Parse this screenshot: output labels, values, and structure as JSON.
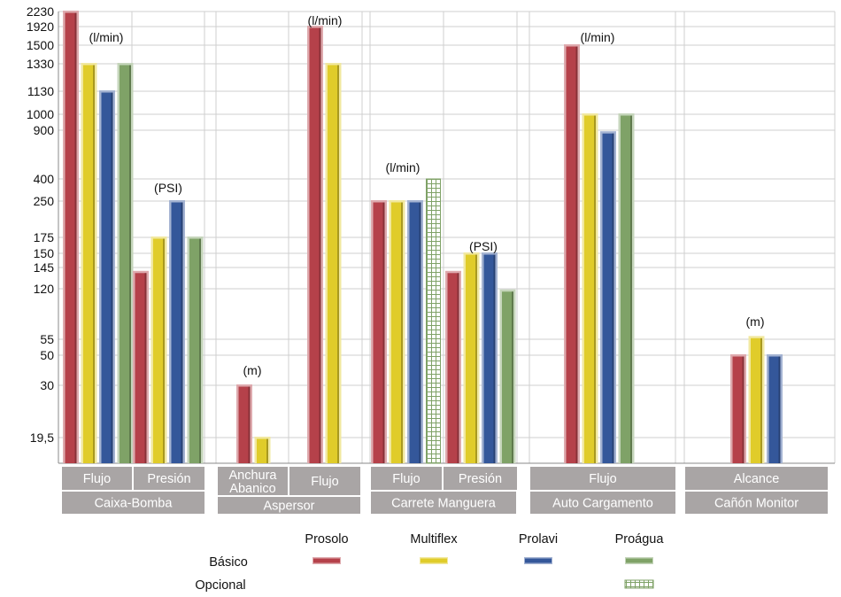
{
  "chart_data": {
    "type": "bar",
    "y_ticks": [
      "2230",
      "1920",
      "1500",
      "1330",
      "1130",
      "1000",
      "900",
      "400",
      "250",
      "175",
      "150",
      "145",
      "120",
      "55",
      "50",
      "30",
      "19,5"
    ],
    "groups": [
      {
        "sub": "Flujo",
        "main": "Caixa-Bomba",
        "unit": "(l/min)",
        "bars": [
          {
            "series": "Prosolo",
            "type": "Básico",
            "value": 2230
          },
          {
            "series": "Multiflex",
            "type": "Básico",
            "value": 1330
          },
          {
            "series": "Prolavi",
            "type": "Básico",
            "value": 1130
          },
          {
            "series": "Proágua",
            "type": "Básico",
            "value": 1330
          }
        ]
      },
      {
        "sub": "Presión",
        "main": "Caixa-Bomba",
        "unit": "(PSI)",
        "bars": [
          {
            "series": "Prosolo",
            "type": "Básico",
            "value": 140
          },
          {
            "series": "Multiflex",
            "type": "Básico",
            "value": 175
          },
          {
            "series": "Prolavi",
            "type": "Básico",
            "value": 250
          },
          {
            "series": "Proágua",
            "type": "Básico",
            "value": 175
          }
        ]
      },
      {
        "sub": "Anchura Abanico",
        "main": "Aspersor",
        "unit": "(m)",
        "bars": [
          {
            "series": "Prosolo",
            "type": "Básico",
            "value": 30
          },
          {
            "series": "Multiflex",
            "type": "Básico",
            "value": 19.5
          }
        ]
      },
      {
        "sub": "Flujo",
        "main": "Aspersor",
        "unit": "(l/min)",
        "bars": [
          {
            "series": "Prosolo",
            "type": "Básico",
            "value": 1920
          },
          {
            "series": "Multiflex",
            "type": "Básico",
            "value": 1330
          }
        ]
      },
      {
        "sub": "Flujo",
        "main": "Carrete Manguera",
        "unit": "(l/min)",
        "bars": [
          {
            "series": "Prosolo",
            "type": "Básico",
            "value": 250
          },
          {
            "series": "Multiflex",
            "type": "Básico",
            "value": 250
          },
          {
            "series": "Prolavi",
            "type": "Básico",
            "value": 250
          },
          {
            "series": "Proágua",
            "type": "Opcional",
            "value": 400
          }
        ]
      },
      {
        "sub": "Presión",
        "main": "Carrete Manguera",
        "unit": "(PSI)",
        "bars": [
          {
            "series": "Prosolo",
            "type": "Básico",
            "value": 140
          },
          {
            "series": "Multiflex",
            "type": "Básico",
            "value": 150
          },
          {
            "series": "Prolavi",
            "type": "Básico",
            "value": 150
          },
          {
            "series": "Proágua",
            "type": "Básico",
            "value": 118
          }
        ]
      },
      {
        "sub": "Flujo",
        "main": "Auto Cargamento",
        "unit": "(l/min)",
        "bars": [
          {
            "series": "Prosolo",
            "type": "Básico",
            "value": 1500
          },
          {
            "series": "Multiflex",
            "type": "Básico",
            "value": 1000
          },
          {
            "series": "Prolavi",
            "type": "Básico",
            "value": 880
          },
          {
            "series": "Proágua",
            "type": "Básico",
            "value": 1000
          }
        ]
      },
      {
        "sub": "Alcance",
        "main": "Cañón Monitor",
        "unit": "(m)",
        "bars": [
          {
            "series": "Prosolo",
            "type": "Básico",
            "value": 50
          },
          {
            "series": "Multiflex",
            "type": "Básico",
            "value": 58
          },
          {
            "series": "Prolavi",
            "type": "Básico",
            "value": 50
          }
        ]
      }
    ],
    "series": [
      {
        "name": "Prosolo",
        "color": "#b5414a"
      },
      {
        "name": "Multiflex",
        "color": "#e0cc2a"
      },
      {
        "name": "Prolavi",
        "color": "#34579a"
      },
      {
        "name": "Proágua",
        "color": "#7fa267"
      }
    ],
    "legend": {
      "row_labels": [
        "Básico",
        "Opcional"
      ],
      "opcional_series": [
        "Proágua"
      ]
    },
    "grid": true
  }
}
